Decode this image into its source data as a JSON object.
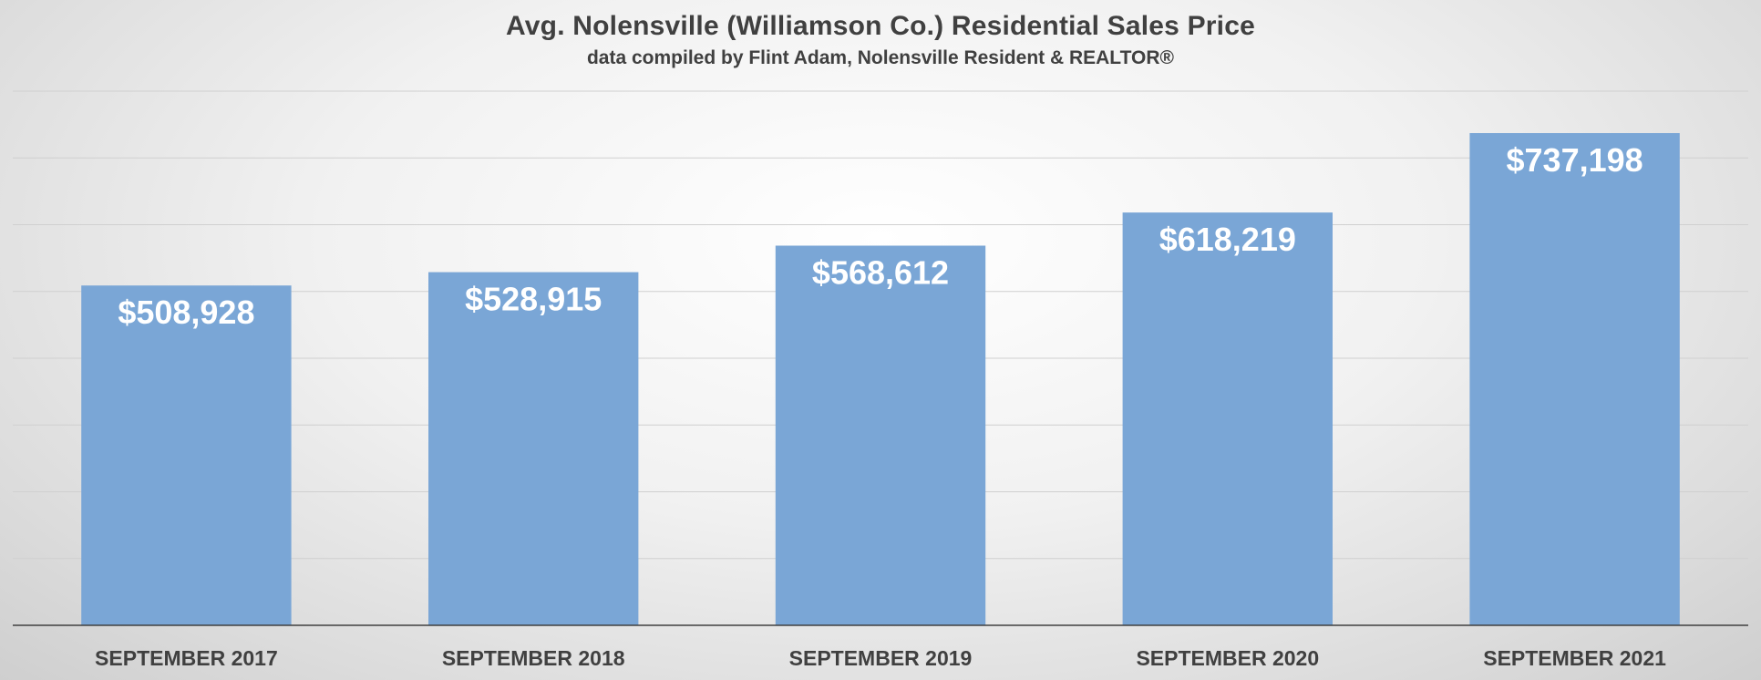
{
  "chart_data": {
    "type": "bar",
    "title": "Avg. Nolensville (Williamson Co.) Residential Sales Price",
    "subtitle": "data compiled by Flint Adam, Nolensville Resident & REALTOR®",
    "categories": [
      "SEPTEMBER 2017",
      "SEPTEMBER 2018",
      "SEPTEMBER 2019",
      "SEPTEMBER 2020",
      "SEPTEMBER 2021"
    ],
    "values": [
      508928,
      528915,
      568612,
      618219,
      737198
    ],
    "data_labels": [
      "$508,928",
      "$528,915",
      "$568,612",
      "$618,219",
      "$737,198"
    ],
    "ylim": [
      0,
      800000
    ],
    "grid": true,
    "bar_color": "#7aa6d6",
    "grid_color": "#d0d0d0",
    "axis_color": "#404040"
  }
}
